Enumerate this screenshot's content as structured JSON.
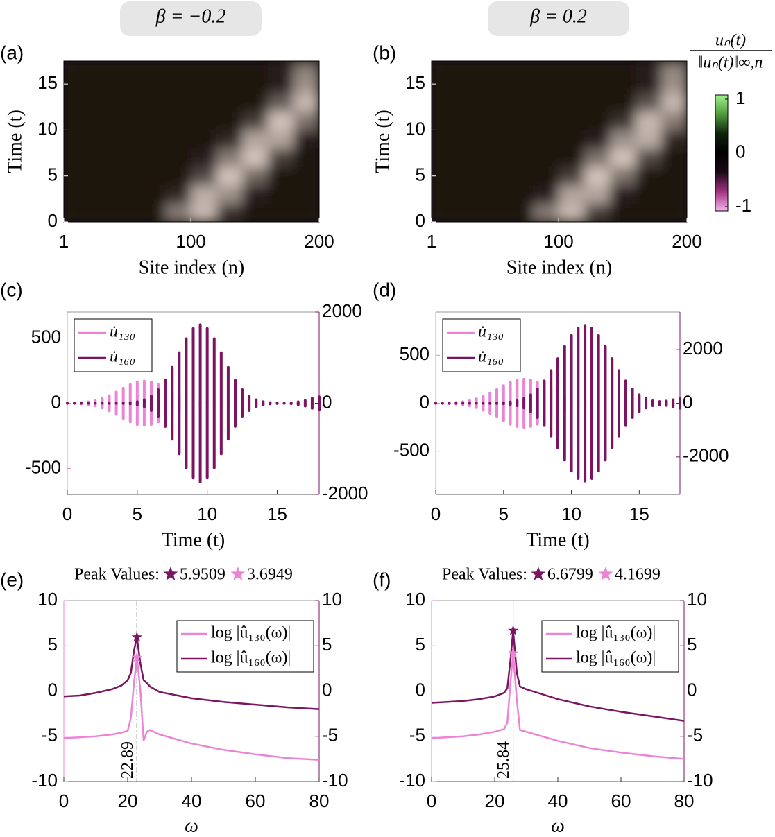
{
  "column_titles": [
    "β = −0.2",
    "β = 0.2"
  ],
  "colorbar": {
    "label_numerator": "uₙ(t)",
    "label_denominator": "‖uₙ(t)‖∞,n",
    "lim": [
      -1,
      1
    ],
    "ticks": [
      -1,
      0,
      1
    ],
    "colors": [
      "#f7b3ec",
      "#a0307f",
      "#1a0a14",
      "#000000",
      "#10230c",
      "#4f9a3d",
      "#9ef58c"
    ]
  },
  "chart_data": [
    {
      "type": "heatmap",
      "panel": "(a)",
      "xlabel": "Site index (n)",
      "ylabel": "Time (t)",
      "xlim": [
        1,
        200
      ],
      "xticks": [
        1,
        100,
        200
      ],
      "ylim": [
        0,
        17.5
      ],
      "yticks": [
        0,
        5,
        10,
        15
      ],
      "xbins": [
        1,
        20,
        40,
        60,
        80,
        100,
        120,
        140,
        160,
        180,
        200
      ],
      "ybins": [
        0,
        2,
        4,
        6,
        8,
        10,
        12,
        14,
        16,
        17.5
      ],
      "cell_colors": [
        "#1b1310",
        "#f2e4da"
      ],
      "z": [
        [
          0,
          0,
          0,
          0,
          0.5,
          0.8,
          0.15,
          0,
          0,
          0
        ],
        [
          0,
          0,
          0,
          0,
          0.1,
          0.75,
          0.6,
          0.05,
          0,
          0
        ],
        [
          0,
          0,
          0,
          0,
          0,
          0.25,
          0.85,
          0.4,
          0,
          0
        ],
        [
          0,
          0,
          0,
          0,
          0,
          0.05,
          0.5,
          0.85,
          0.2,
          0
        ],
        [
          0,
          0,
          0,
          0,
          0,
          0,
          0.1,
          0.7,
          0.7,
          0.05
        ],
        [
          0,
          0,
          0,
          0,
          0,
          0,
          0,
          0.2,
          0.85,
          0.45
        ],
        [
          0,
          0,
          0,
          0,
          0,
          0,
          0,
          0,
          0.35,
          0.8
        ],
        [
          0,
          0,
          0,
          0,
          0,
          0,
          0,
          0,
          0.05,
          0.6
        ],
        [
          0,
          0,
          0,
          0,
          0,
          0,
          0,
          0,
          0.05,
          0.5
        ]
      ]
    },
    {
      "type": "heatmap",
      "panel": "(b)",
      "xlabel": "Site index (n)",
      "ylabel": "Time (t)",
      "xlim": [
        1,
        200
      ],
      "xticks": [
        1,
        100,
        200
      ],
      "ylim": [
        0,
        17.5
      ],
      "yticks": [
        0,
        5,
        10,
        15
      ],
      "xbins": [
        1,
        20,
        40,
        60,
        80,
        100,
        120,
        140,
        160,
        180,
        200
      ],
      "ybins": [
        0,
        2,
        4,
        6,
        8,
        10,
        12,
        14,
        16,
        17.5
      ],
      "cell_colors": [
        "#1b1310",
        "#f2e4da"
      ],
      "z": [
        [
          0,
          0,
          0,
          0,
          0.5,
          0.8,
          0.2,
          0,
          0,
          0
        ],
        [
          0,
          0,
          0,
          0,
          0.05,
          0.7,
          0.7,
          0.05,
          0,
          0
        ],
        [
          0,
          0,
          0,
          0,
          0,
          0.2,
          0.85,
          0.45,
          0,
          0
        ],
        [
          0,
          0,
          0,
          0,
          0,
          0,
          0.45,
          0.85,
          0.25,
          0
        ],
        [
          0,
          0,
          0,
          0,
          0,
          0,
          0.05,
          0.6,
          0.75,
          0.1
        ],
        [
          0,
          0,
          0,
          0,
          0,
          0,
          0,
          0.15,
          0.8,
          0.5
        ],
        [
          0,
          0,
          0,
          0,
          0,
          0,
          0,
          0,
          0.3,
          0.8
        ],
        [
          0,
          0,
          0,
          0,
          0,
          0,
          0,
          0,
          0.05,
          0.6
        ],
        [
          0,
          0,
          0,
          0,
          0,
          0,
          0,
          0,
          0.05,
          0.55
        ]
      ]
    },
    {
      "type": "envelope",
      "panel": "(c)",
      "xlabel": "Time (t)",
      "x": [
        0,
        0.5,
        1,
        1.5,
        2,
        2.5,
        3,
        3.5,
        4,
        4.5,
        5,
        5.5,
        6,
        6.5,
        7,
        7.5,
        8,
        8.5,
        9,
        9.5,
        10,
        10.5,
        11,
        11.5,
        12,
        12.5,
        13,
        13.5,
        14,
        14.5,
        15,
        15.5,
        16,
        16.5,
        17,
        17.5,
        18
      ],
      "xlim": [
        0,
        18
      ],
      "xticks": [
        0,
        5,
        10,
        15
      ],
      "ylim": [
        -700,
        700
      ],
      "yticks": [
        -500,
        0,
        500
      ],
      "y2lim": [
        -2000,
        2000
      ],
      "y2ticks": [
        -2000,
        0,
        2000
      ],
      "series": [
        {
          "name": "u̇₁₃₀",
          "color": "#ec84d6",
          "values": [
            0.9,
            2.2,
            5.1,
            10.7,
            20,
            36,
            58,
            85,
            115,
            143,
            163,
            170,
            163,
            143,
            115,
            85,
            58,
            36,
            20,
            11,
            5,
            2,
            1,
            0,
            0,
            0,
            0,
            0,
            0,
            0,
            0,
            0,
            0,
            0,
            0,
            0,
            0
          ]
        },
        {
          "name": "u̇₁₆₀",
          "color": "#7b1563",
          "axis": "y2",
          "values": [
            0,
            0,
            0,
            0,
            0,
            0,
            1,
            1.5,
            4.7,
            13,
            33,
            76,
            158,
            296,
            508,
            788,
            1108,
            1415,
            1638,
            1720,
            1638,
            1415,
            1108,
            788,
            508,
            296,
            158,
            76,
            33,
            13,
            5,
            2,
            10,
            30,
            60,
            110,
            140
          ]
        }
      ]
    },
    {
      "type": "envelope",
      "panel": "(d)",
      "xlabel": "Time (t)",
      "x": [
        0,
        0.5,
        1,
        1.5,
        2,
        2.5,
        3,
        3.5,
        4,
        4.5,
        5,
        5.5,
        6,
        6.5,
        7,
        7.5,
        8,
        8.5,
        9,
        9.5,
        10,
        10.5,
        11,
        11.5,
        12,
        12.5,
        13,
        13.5,
        14,
        14.5,
        15,
        15.5,
        16,
        16.5,
        17,
        17.5,
        18
      ],
      "xlim": [
        0,
        18
      ],
      "xticks": [
        0,
        5,
        10,
        15
      ],
      "ylim": [
        -950,
        950
      ],
      "yticks": [
        -500,
        0,
        500
      ],
      "y2lim": [
        -3400,
        3400
      ],
      "y2ticks": [
        -2000,
        0,
        2000
      ],
      "series": [
        {
          "name": "u̇₁₃₀",
          "color": "#ec84d6",
          "values": [
            0.7,
            1.7,
            3.7,
            7.8,
            15,
            27,
            46,
            72,
            105,
            143,
            183,
            218,
            241,
            250,
            241,
            218,
            183,
            143,
            105,
            72,
            46,
            27,
            15,
            8,
            4,
            2,
            1,
            0,
            0,
            0,
            0,
            0,
            0,
            0,
            0,
            0,
            0
          ]
        },
        {
          "name": "u̇₁₆₀",
          "color": "#7b1563",
          "axis": "y2",
          "values": [
            0,
            0,
            0,
            0,
            0,
            0,
            1,
            2,
            3,
            8,
            20,
            44,
            90,
            174,
            314,
            530,
            832,
            1218,
            1665,
            2117,
            2523,
            2801,
            2900,
            2801,
            2523,
            2117,
            1665,
            1218,
            832,
            530,
            314,
            174,
            90,
            60,
            80,
            130,
            180
          ]
        }
      ]
    },
    {
      "type": "line",
      "panel": "(e)",
      "title": "Peak Values:",
      "xlabel": "ω",
      "x": [
        0,
        5,
        10,
        15,
        18,
        20,
        21,
        22,
        22.89,
        24,
        25,
        26,
        27,
        30,
        40,
        50,
        60,
        70,
        80
      ],
      "xlim": [
        0,
        80
      ],
      "xticks": [
        0,
        20,
        40,
        60,
        80
      ],
      "ylim": [
        -10,
        10
      ],
      "yticks": [
        -10,
        -5,
        0,
        5,
        10
      ],
      "y2lim": [
        -10,
        10
      ],
      "y2ticks": [
        -10,
        -5,
        0,
        5,
        10
      ],
      "peak_x": 22.89,
      "series": [
        {
          "name": "log |û₁₃₀(ω)|",
          "color": "#ec84d6",
          "peak": 3.6949,
          "values": [
            -5.2,
            -5.1,
            -5.0,
            -4.8,
            -4.6,
            -4.4,
            -3.0,
            1.0,
            3.6949,
            0,
            -5.5,
            -4.5,
            -4.3,
            -4.8,
            -5.8,
            -6.5,
            -7.0,
            -7.4,
            -7.6
          ]
        },
        {
          "name": "log |û₁₆₀(ω)|",
          "color": "#7b1563",
          "axis": "y2",
          "peak": 5.9509,
          "values": [
            -0.6,
            -0.5,
            -0.2,
            0.2,
            0.6,
            1.2,
            2.0,
            4.5,
            5.9509,
            3.0,
            1.2,
            0.9,
            0.5,
            -0.1,
            -0.8,
            -1.2,
            -1.5,
            -1.8,
            -2.0
          ]
        }
      ]
    },
    {
      "type": "line",
      "panel": "(f)",
      "title": "Peak Values:",
      "xlabel": "ω",
      "x": [
        0,
        5,
        10,
        15,
        20,
        23,
        24,
        25,
        25.84,
        27,
        28,
        30,
        40,
        50,
        60,
        70,
        80
      ],
      "xlim": [
        0,
        80
      ],
      "xticks": [
        0,
        20,
        40,
        60,
        80
      ],
      "ylim": [
        -10,
        10
      ],
      "yticks": [
        -10,
        -5,
        0,
        5,
        10
      ],
      "y2lim": [
        -10,
        10
      ],
      "y2ticks": [
        -10,
        -5,
        0,
        5,
        10
      ],
      "peak_x": 25.84,
      "series": [
        {
          "name": "log |û₁₃₀(ω)|",
          "color": "#ec84d6",
          "peak": 4.1699,
          "values": [
            -5.2,
            -5.1,
            -5.0,
            -4.8,
            -4.5,
            -4.2,
            -3.5,
            1.0,
            4.1699,
            -1.0,
            -4.3,
            -4.5,
            -5.5,
            -6.3,
            -6.8,
            -7.2,
            -7.5
          ]
        },
        {
          "name": "log |û₁₆₀(ω)|",
          "color": "#7b1563",
          "axis": "y2",
          "peak": 6.6799,
          "values": [
            -1.3,
            -1.2,
            -1.1,
            -0.9,
            -0.6,
            -0.2,
            0.3,
            3.5,
            6.6799,
            2.0,
            0.5,
            0.2,
            -0.9,
            -1.7,
            -2.3,
            -2.8,
            -3.3
          ]
        }
      ]
    }
  ]
}
